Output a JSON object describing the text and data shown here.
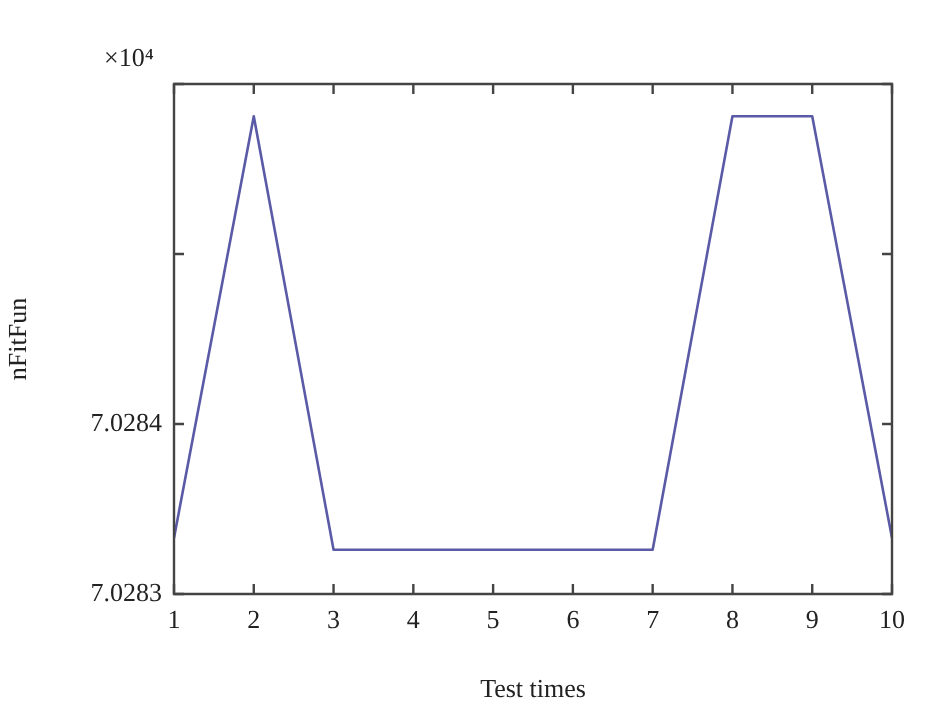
{
  "chart_data": {
    "type": "line",
    "xlabel": "Test times",
    "ylabel": "nFitFun",
    "annotations": [
      "×10⁴"
    ],
    "x": [
      1,
      2,
      3,
      4,
      5,
      6,
      7,
      8,
      9,
      10
    ],
    "series": [
      {
        "color": "#5a5aa6",
        "values": [
          7.028333,
          7.028581,
          7.028326,
          7.028326,
          7.028326,
          7.028326,
          7.028326,
          7.028581,
          7.028581,
          7.028333
        ]
      }
    ],
    "xlim": [
      1,
      10
    ],
    "xticks": [
      1,
      2,
      3,
      4,
      5,
      6,
      7,
      8,
      9,
      10
    ],
    "ylim": [
      7.0283,
      7.0286
    ],
    "yticks": [
      7.0283,
      7.0284,
      {
        "value": 7.0285,
        "label": null
      },
      {
        "value": 7.0286,
        "label": null
      }
    ],
    "grid": false,
    "legend": false,
    "marker": "none",
    "line_style": "solid"
  }
}
